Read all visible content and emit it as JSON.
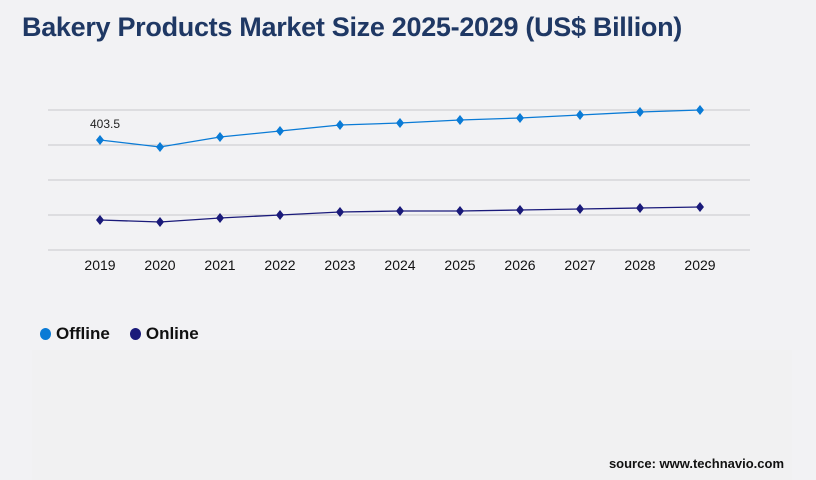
{
  "title": "Bakery Products Market Size 2025-2029 (US$ Billion)",
  "source": "source: www.technavio.com",
  "chart_data": {
    "type": "line",
    "title": "Bakery Products Market Size 2025-2029 (US$ Billion)",
    "xlabel": "",
    "ylabel": "",
    "categories": [
      "2019",
      "2020",
      "2021",
      "2022",
      "2023",
      "2024",
      "2025",
      "2026",
      "2027",
      "2028",
      "2029"
    ],
    "series": [
      {
        "name": "Offline",
        "color": "#0a7bd6",
        "values": [
          403.5,
          377.8,
          414.5,
          436.5,
          458.5,
          465.8,
          476.9,
          484.2,
          495.2,
          506.2,
          513.5
        ]
      },
      {
        "name": "Online",
        "color": "#1a1a7a",
        "values": [
          110.0,
          102.7,
          117.4,
          128.4,
          139.4,
          143.0,
          143.0,
          146.7,
          150.4,
          154.0,
          157.7
        ]
      }
    ],
    "data_labels": [
      {
        "series": "Offline",
        "category": "2019",
        "text": "403.5"
      }
    ],
    "ylim": [
      0,
      513.5
    ],
    "y_axis_visible": false,
    "grid": true,
    "legend_position": "bottom-left",
    "marker": "diamond"
  }
}
